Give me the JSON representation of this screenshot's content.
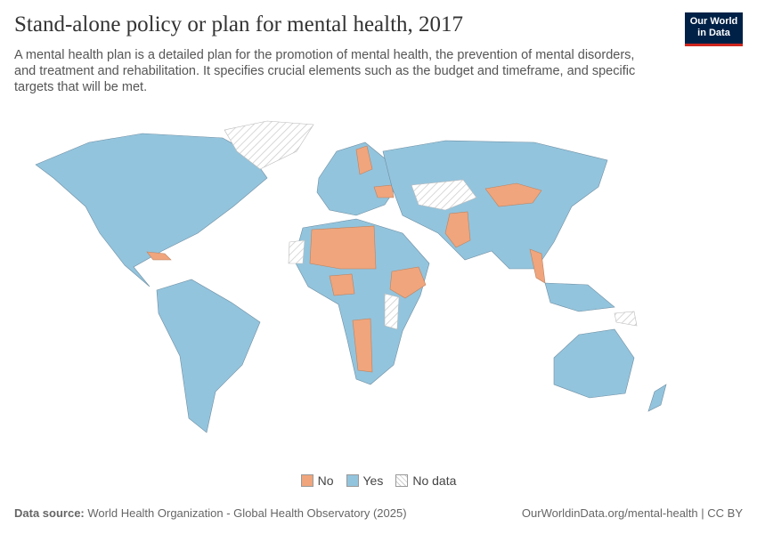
{
  "header": {
    "title": "Stand-alone policy or plan for mental health, 2017",
    "subtitle": "A mental health plan is a detailed plan for the promotion of mental health, the prevention of mental disorders, and treatment and rehabilitation. It specifies crucial elements such as the budget and timeframe, and specific targets that will be met.",
    "logo": [
      "Our World",
      "in Data"
    ]
  },
  "legend": [
    "No",
    "Yes",
    "No data"
  ],
  "footer": {
    "source_label": "Data source:",
    "source": "World Health Organization - Global Health Observatory (2025)",
    "url": "OurWorldinData.org/mental-health | CC BY"
  }
}
